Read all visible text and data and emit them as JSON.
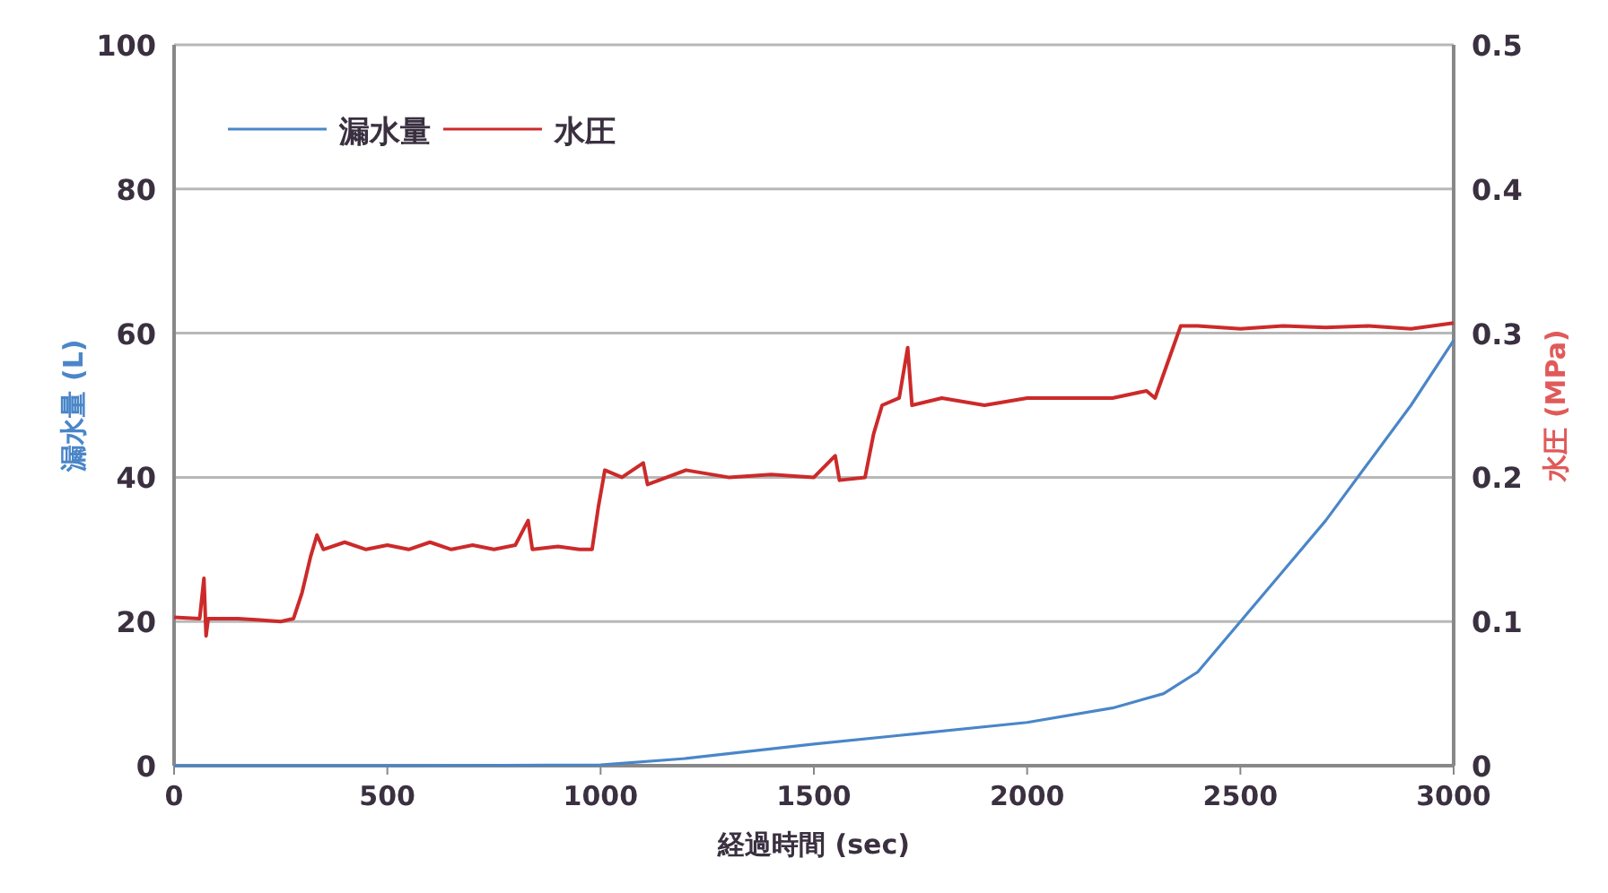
{
  "chart_data": {
    "type": "line",
    "xlabel": "経過時間 (sec)",
    "ylabel": "漏水量 (L)",
    "y2label": "水圧 (MPa)",
    "xlim": [
      0,
      3000
    ],
    "xticks": [
      0,
      500,
      1000,
      1500,
      2000,
      2500,
      3000
    ],
    "ylim": [
      0,
      100
    ],
    "yticks": [
      0,
      20,
      40,
      60,
      80,
      100
    ],
    "y2lim": [
      0,
      0.5
    ],
    "y2ticks": [
      0,
      0.1,
      0.2,
      0.3,
      0.4,
      0.5
    ],
    "grid": "y",
    "legend": "top left",
    "line_style": "solid",
    "marker": "none",
    "series": [
      {
        "name": "漏水量",
        "color": "#4a86c8",
        "x": [
          0,
          500,
          1000,
          1200,
          1500,
          1700,
          2000,
          2200,
          2320,
          2400,
          2500,
          2600,
          2700,
          2800,
          2900,
          3000
        ],
        "values": [
          0,
          0,
          0.1,
          1,
          3,
          4.2,
          6,
          8,
          10,
          13,
          20,
          27,
          34,
          42,
          50,
          59
        ]
      },
      {
        "name": "水圧",
        "color": "#cc2a2a",
        "axis": "y2",
        "x": [
          0,
          60,
          70,
          75,
          80,
          150,
          200,
          250,
          280,
          300,
          320,
          335,
          350,
          400,
          450,
          500,
          550,
          600,
          650,
          700,
          750,
          800,
          830,
          840,
          900,
          950,
          980,
          995,
          1010,
          1050,
          1100,
          1110,
          1200,
          1300,
          1400,
          1500,
          1550,
          1560,
          1620,
          1640,
          1660,
          1700,
          1720,
          1730,
          1800,
          1900,
          2000,
          2100,
          2200,
          2280,
          2300,
          2330,
          2360,
          2400,
          2500,
          2600,
          2700,
          2800,
          2900,
          3000
        ],
        "values": [
          0.103,
          0.102,
          0.13,
          0.09,
          0.102,
          0.102,
          0.101,
          0.1,
          0.102,
          0.12,
          0.145,
          0.16,
          0.15,
          0.155,
          0.15,
          0.153,
          0.15,
          0.155,
          0.15,
          0.153,
          0.15,
          0.153,
          0.17,
          0.15,
          0.152,
          0.15,
          0.15,
          0.18,
          0.205,
          0.2,
          0.21,
          0.195,
          0.205,
          0.2,
          0.202,
          0.2,
          0.215,
          0.198,
          0.2,
          0.23,
          0.25,
          0.255,
          0.29,
          0.25,
          0.255,
          0.25,
          0.255,
          0.255,
          0.255,
          0.26,
          0.255,
          0.28,
          0.305,
          0.305,
          0.303,
          0.305,
          0.304,
          0.305,
          0.303,
          0.307
        ]
      }
    ]
  }
}
